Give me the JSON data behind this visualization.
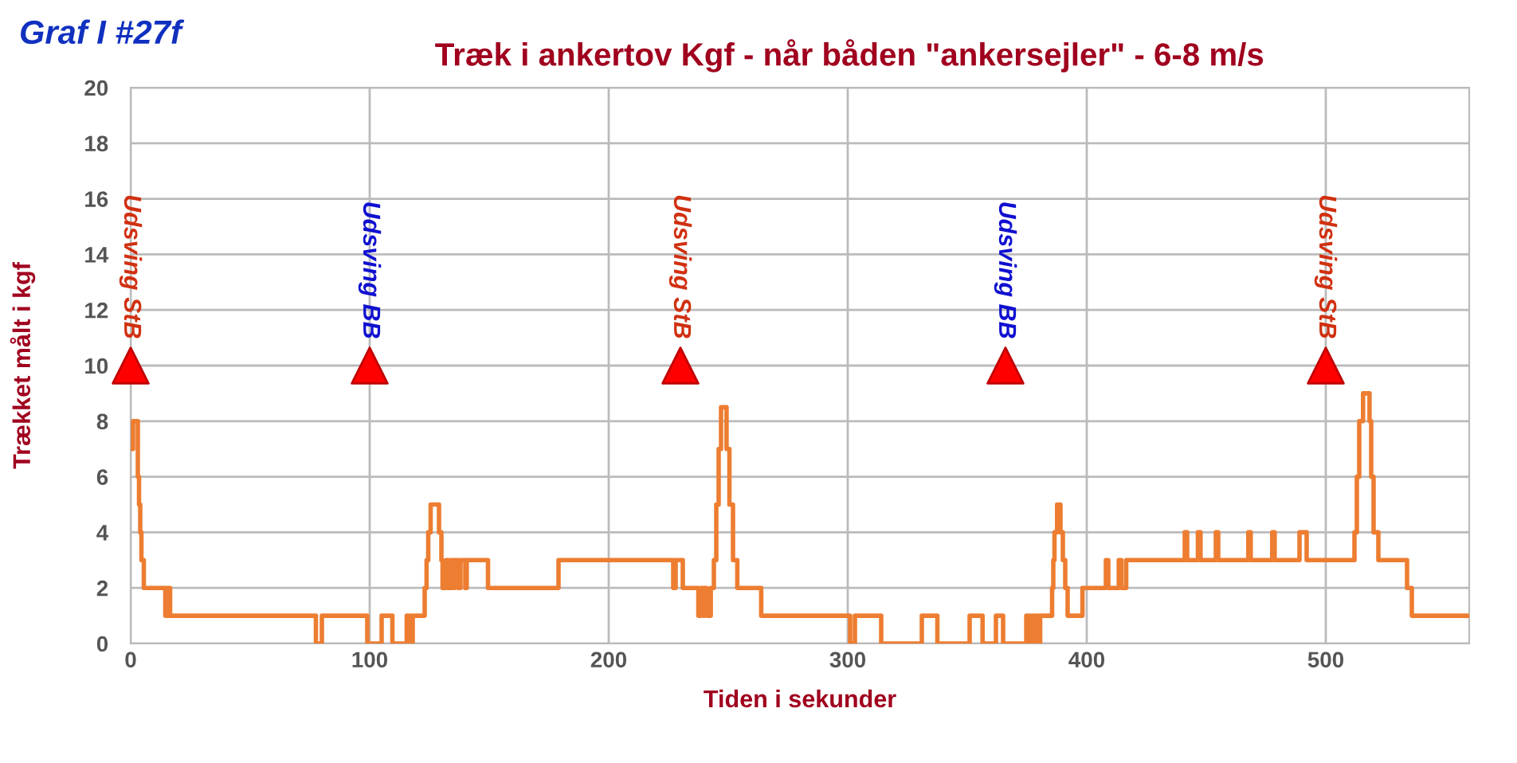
{
  "chart_data": {
    "type": "step",
    "title": "Træk i ankertov Kgf - når båden \"ankersejler\" - 6-8 m/s",
    "xlabel": "Tiden i sekunder",
    "ylabel": "Trækket målt i kgf",
    "annotations": [
      "Graf I #27f",
      {
        "text": "Udsving StB",
        "x": 0,
        "y": 10
      },
      {
        "text": "Udsving BB",
        "x": 100,
        "y": 10
      },
      {
        "text": "Udsving StB",
        "x": 230,
        "y": 10
      },
      {
        "text": "Udsving BB",
        "x": 366,
        "y": 10
      },
      {
        "text": "Udsving StB",
        "x": 500,
        "y": 10
      }
    ],
    "xlim": [
      0,
      560
    ],
    "ylim": [
      0,
      20
    ],
    "xticks": [
      0,
      100,
      200,
      300,
      400,
      500
    ],
    "yticks": [
      0,
      2,
      4,
      6,
      8,
      10,
      12,
      14,
      16,
      18,
      20
    ],
    "grid": true,
    "legend": false,
    "series": [
      {
        "color": "#ed7d31",
        "marker": "none",
        "x": [
          0,
          1,
          3,
          3.5,
          4,
          4.5,
          5.5,
          14.5,
          15,
          15.5,
          16,
          16.5,
          77.5,
          80,
          99,
          105,
          109.5,
          115.5,
          116,
          117,
          117.5,
          118,
          123,
          123.8,
          124.5,
          125.5,
          129,
          130,
          130.5,
          132,
          133,
          134,
          135,
          135.5,
          137,
          138,
          140,
          140.6,
          149.5,
          179,
          227,
          228,
          231,
          237.5,
          238.5,
          239.5,
          240,
          241,
          242.7,
          244,
          245,
          246,
          247,
          249.3,
          250.5,
          252,
          253.8,
          263.8,
          301,
          303,
          314,
          331,
          337.5,
          351,
          356.4,
          362,
          365,
          374.7,
          376,
          377,
          378,
          379,
          380,
          380.5,
          385.5,
          386,
          386.5,
          387.6,
          389,
          390,
          391,
          392,
          398.2,
          408,
          409,
          413.4,
          414.5,
          416.5,
          441,
          442,
          446.5,
          447.6,
          454,
          455,
          467.6,
          468.6,
          477.6,
          478.6,
          489,
          492,
          512,
          513,
          514,
          515.6,
          518.3,
          519,
          520,
          522,
          534,
          536,
          560
        ],
        "values": [
          7,
          8,
          6,
          5,
          4,
          3,
          2,
          1,
          2,
          1,
          2,
          1,
          0,
          1,
          0,
          1,
          0,
          1,
          0,
          1,
          0,
          1,
          2,
          3,
          4,
          5,
          4,
          3,
          2,
          3,
          2,
          3,
          2,
          3,
          2,
          3,
          2,
          3,
          2,
          3,
          2,
          3,
          2,
          1,
          2,
          1,
          2,
          1,
          2,
          3,
          5,
          7,
          8.5,
          7,
          5,
          3,
          2,
          1,
          0,
          1,
          0,
          1,
          0,
          1,
          0,
          1,
          0,
          1,
          0,
          1,
          0,
          1,
          0,
          1,
          2,
          3,
          4,
          5,
          4,
          3,
          2,
          1,
          2,
          3,
          2,
          3,
          2,
          3,
          4,
          3,
          4,
          3,
          4,
          3,
          4,
          3,
          4,
          3,
          4,
          3,
          4,
          6,
          8,
          9,
          8,
          6,
          4,
          3,
          2,
          1,
          1
        ]
      },
      {
        "type": "scatter",
        "color": "#ff0000",
        "marker": "triangle",
        "x": [
          0,
          100,
          230,
          366,
          500
        ],
        "values": [
          10,
          10,
          10,
          10,
          10
        ]
      }
    ]
  }
}
